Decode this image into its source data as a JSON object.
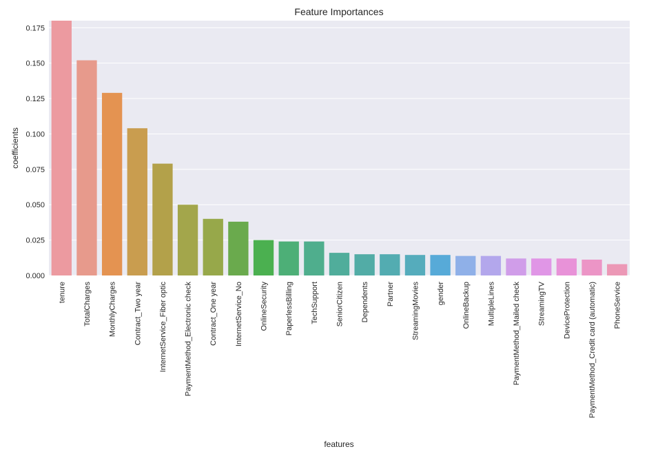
{
  "chart_data": {
    "type": "bar",
    "title": "Feature Importances",
    "xlabel": "features",
    "ylabel": "coefficients",
    "ylim": [
      0,
      0.18
    ],
    "yticks": [
      "0.000",
      "0.025",
      "0.050",
      "0.075",
      "0.100",
      "0.125",
      "0.150",
      "0.175"
    ],
    "grid": true,
    "background": "#eaeaf2",
    "categories": [
      "tenure",
      "TotalCharges",
      "MonthlyCharges",
      "Contract_Two year",
      "InternetService_Fiber optic",
      "PaymentMethod_Electronic check",
      "Contract_One year",
      "InternetService_No",
      "OnlineSecurity",
      "PaperlessBilling",
      "TechSupport",
      "SeniorCitizen",
      "Dependents",
      "Partner",
      "StreamingMovies",
      "gender",
      "OnlineBackup",
      "MultipleLines",
      "PaymentMethod_Mailed check",
      "StreamingTV",
      "DeviceProtection",
      "PaymentMethod_Credit card (automatic)",
      "PhoneService"
    ],
    "values": [
      0.18,
      0.152,
      0.129,
      0.104,
      0.079,
      0.05,
      0.04,
      0.038,
      0.025,
      0.024,
      0.024,
      0.016,
      0.015,
      0.015,
      0.0145,
      0.0145,
      0.0138,
      0.0138,
      0.012,
      0.012,
      0.012,
      0.0112,
      0.008
    ],
    "colors": [
      "#ec9aa0",
      "#e79a8c",
      "#e49351",
      "#c99d4f",
      "#b3a14a",
      "#a3a64b",
      "#97a84a",
      "#6aaa4d",
      "#4bb050",
      "#4daf77",
      "#4fae8d",
      "#50ad9b",
      "#52aca6",
      "#53acb1",
      "#55acbc",
      "#57aad8",
      "#8fb0e8",
      "#b3a7ec",
      "#d09de9",
      "#e096e6",
      "#e892d8",
      "#ec95c6",
      "#ec98b6"
    ]
  }
}
